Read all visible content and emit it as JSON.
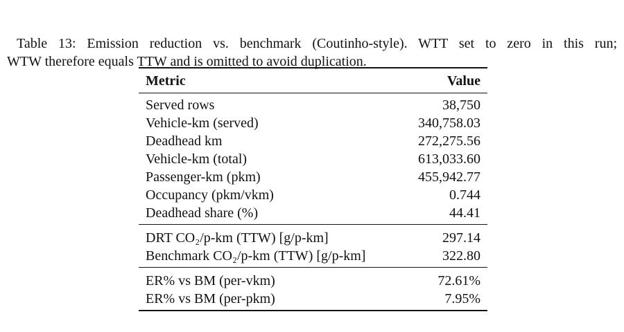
{
  "colors": {
    "background": "#ffffff",
    "text": "#111111",
    "rule": "#111111"
  },
  "caption": {
    "line1": "Table 13: Emission reduction vs. benchmark (Coutinho-style). WTT set to zero in this run;",
    "line2": "WTW therefore equals TTW and is omitted to avoid duplication."
  },
  "table": {
    "headers": {
      "metric": "Metric",
      "value": "Value"
    },
    "sections": [
      {
        "rows": [
          {
            "metric": "Served rows",
            "value": "38,750"
          },
          {
            "metric": "Vehicle-km (served)",
            "value": "340,758.03"
          },
          {
            "metric": "Deadhead km",
            "value": "272,275.56"
          },
          {
            "metric": "Vehicle-km (total)",
            "value": "613,033.60"
          },
          {
            "metric": "Passenger-km (pkm)",
            "value": "455,942.77"
          },
          {
            "metric": "Occupancy (pkm/vkm)",
            "value": "0.744"
          },
          {
            "metric": "Deadhead share (%)",
            "value": "44.41"
          }
        ]
      },
      {
        "rows": [
          {
            "metric": "DRT CO₂/p-km (TTW) [g/p-km]",
            "value": "297.14"
          },
          {
            "metric": "Benchmark CO₂/p-km (TTW) [g/p-km]",
            "value": "322.80"
          }
        ]
      },
      {
        "rows": [
          {
            "metric": "ER% vs BM (per-vkm)",
            "value": "72.61%"
          },
          {
            "metric": "ER% vs BM (per-pkm)",
            "value": "7.95%"
          }
        ]
      }
    ]
  }
}
